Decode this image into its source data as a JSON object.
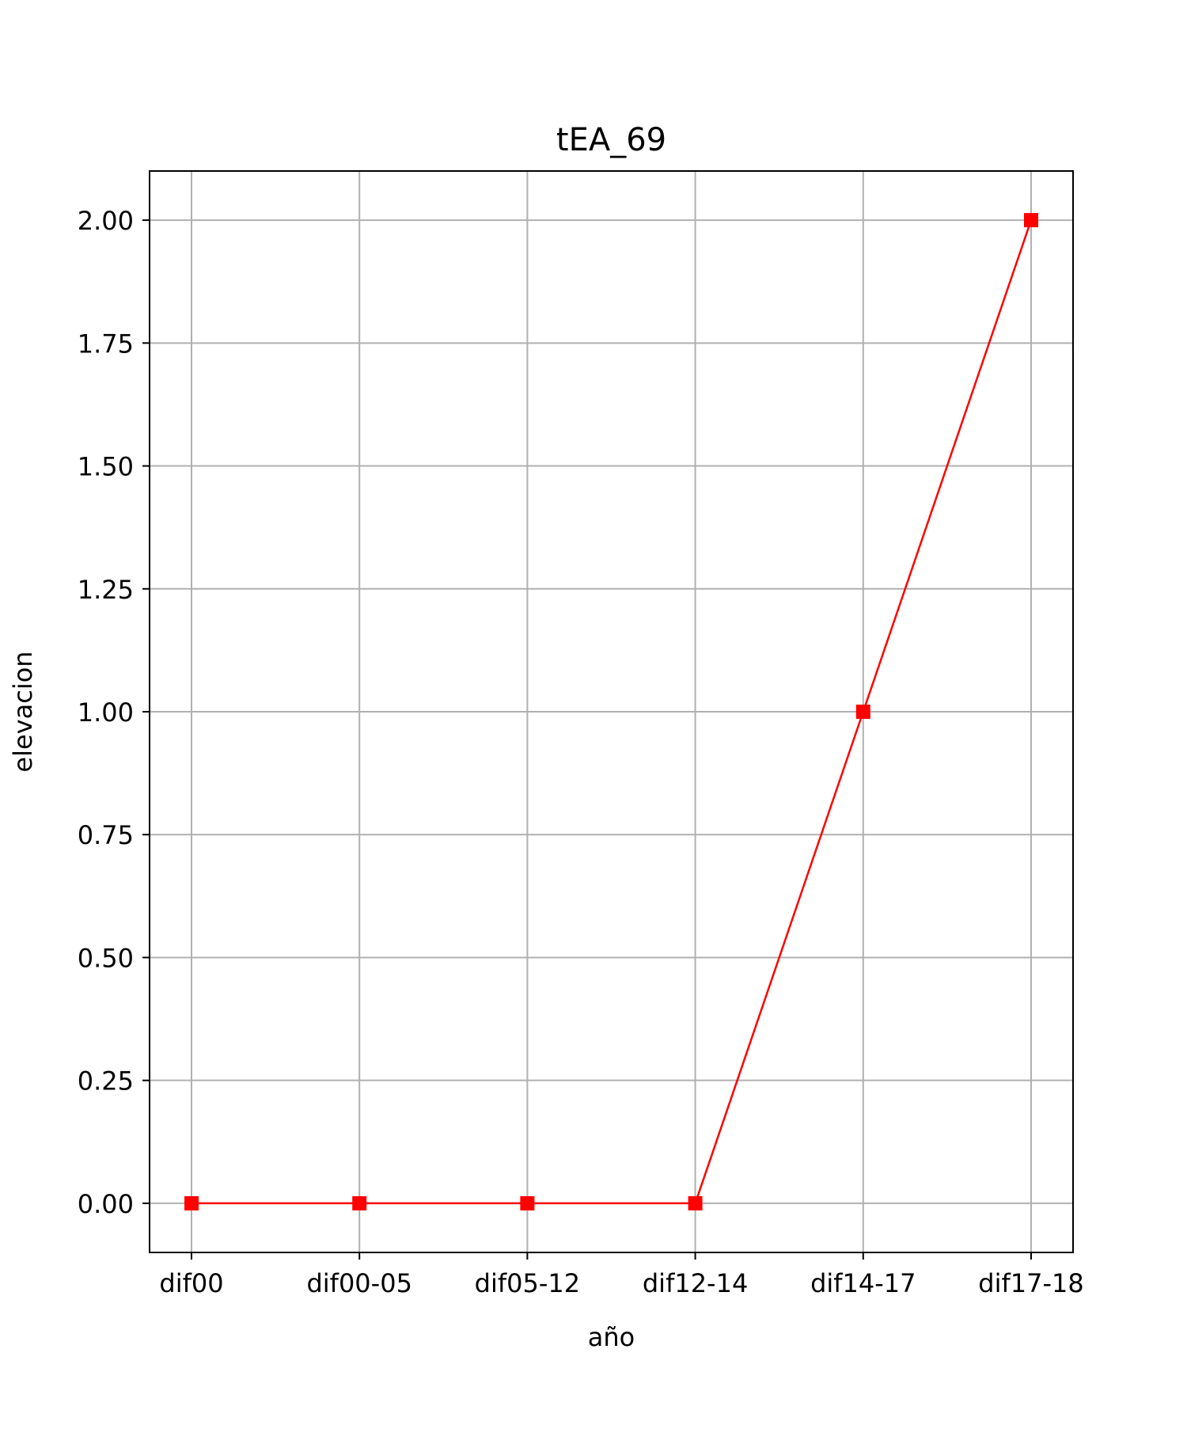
{
  "chart_data": {
    "type": "line",
    "title": "tEA_69",
    "xlabel": "año",
    "ylabel": "elevacion",
    "categories": [
      "dif00",
      "dif00-05",
      "dif05-12",
      "dif12-14",
      "dif14-17",
      "dif17-18"
    ],
    "series": [
      {
        "values": [
          0,
          0,
          0,
          0,
          1,
          2
        ],
        "color": "#ff0000",
        "marker": "square"
      }
    ],
    "ylim": [
      -0.1,
      2.1
    ],
    "yticks": [
      0.0,
      0.25,
      0.5,
      0.75,
      1.0,
      1.25,
      1.5,
      1.75,
      2.0
    ],
    "ytick_labels": [
      "0.00",
      "0.25",
      "0.50",
      "0.75",
      "1.00",
      "1.25",
      "1.50",
      "1.75",
      "2.00"
    ],
    "grid": true,
    "grid_color": "#b0b0b0",
    "legend": false
  }
}
